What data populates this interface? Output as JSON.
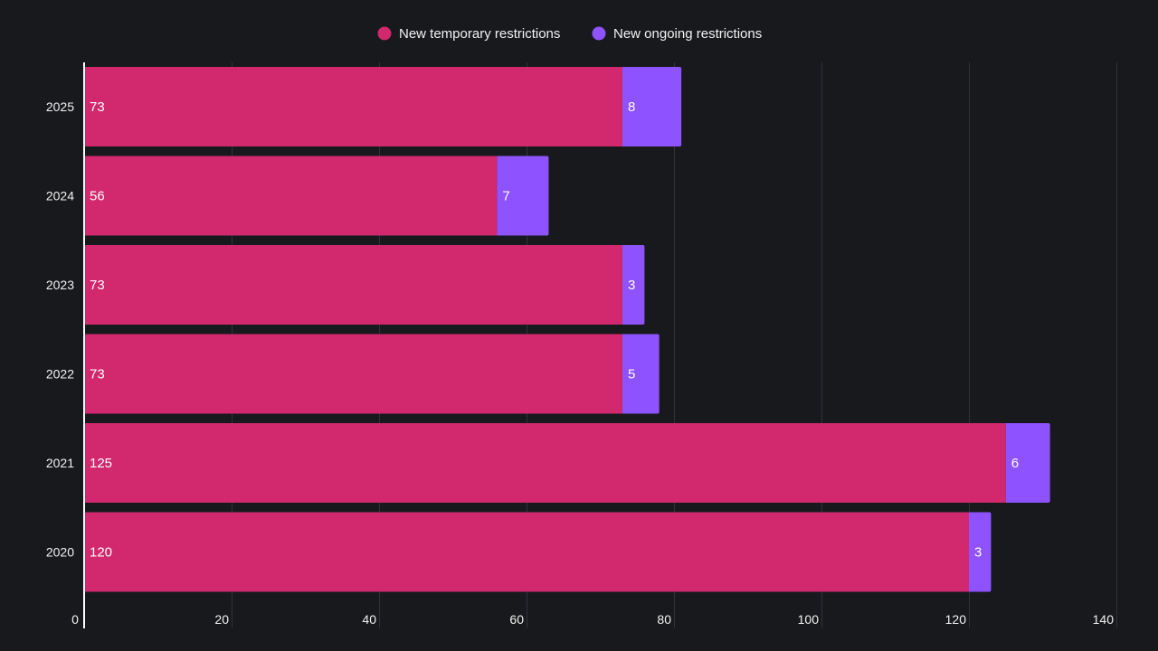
{
  "chart_data": {
    "type": "bar",
    "orientation": "horizontal",
    "stacked": true,
    "categories": [
      "2025",
      "2024",
      "2023",
      "2022",
      "2021",
      "2020"
    ],
    "series": [
      {
        "name": "New temporary restrictions",
        "color": "#d1286e",
        "values": [
          73,
          56,
          73,
          73,
          125,
          120
        ]
      },
      {
        "name": "New ongoing restrictions",
        "color": "#8e52ff",
        "values": [
          8,
          7,
          3,
          5,
          6,
          3
        ]
      }
    ],
    "xlim": [
      0,
      140
    ],
    "xticks": [
      "0",
      "20",
      "40",
      "60",
      "80",
      "100",
      "120",
      "140"
    ],
    "legend_position": "top-center",
    "grid": true,
    "title": "",
    "xlabel": "",
    "ylabel": ""
  },
  "colors": {
    "background": "#17191c",
    "grid": "#2f3338",
    "axis": "#ffffff",
    "text": "#f2f2f2"
  }
}
